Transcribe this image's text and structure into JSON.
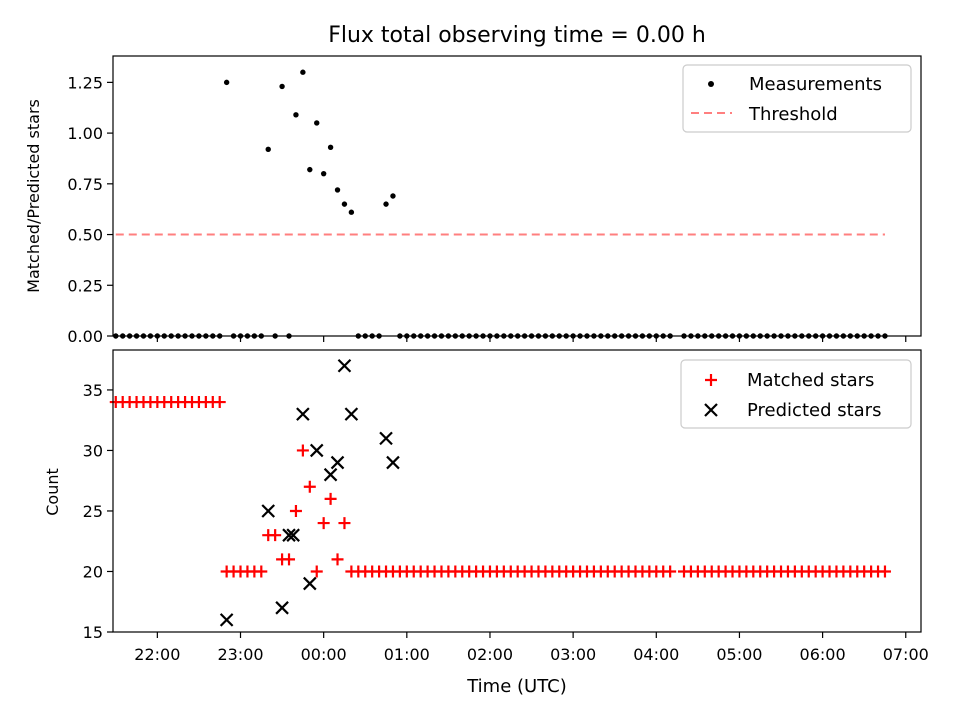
{
  "title": "Flux total observing time = 0.00 h",
  "colors": {
    "measure": "#000000",
    "threshold": "#ff7f7f",
    "matched": "#ff0000",
    "predicted": "#000000"
  },
  "chart_data": [
    {
      "type": "scatter",
      "title": "Flux total observing time = 0.00 h",
      "ylabel": "Matched/Predicted stars",
      "xlabel": "",
      "xlim": [
        "21:28",
        "07:11"
      ],
      "ylim": [
        0,
        1.38
      ],
      "yticks": [
        "0.00",
        "0.25",
        "0.50",
        "0.75",
        "1.00",
        "1.25"
      ],
      "xticks": [
        "22:00",
        "23:00",
        "00:00",
        "01:00",
        "02:00",
        "03:00",
        "04:00",
        "05:00",
        "06:00",
        "07:00"
      ],
      "legend": {
        "placement": "top-right",
        "entries": [
          "Measurements",
          "Threshold"
        ]
      },
      "threshold": {
        "name": "Threshold",
        "y": 0.5,
        "x": [
          "21:30",
          "06:45"
        ]
      },
      "series": [
        {
          "name": "Measurements",
          "x": [
            "21:30",
            "21:35",
            "21:40",
            "21:45",
            "21:50",
            "21:55",
            "22:00",
            "22:05",
            "22:10",
            "22:15",
            "22:20",
            "22:25",
            "22:30",
            "22:35",
            "22:40",
            "22:45",
            "22:50",
            "22:55",
            "23:00",
            "23:05",
            "23:10",
            "23:15",
            "23:20",
            "23:25",
            "23:30",
            "23:35",
            "23:40",
            "23:45",
            "23:50",
            "23:55",
            "00:00",
            "00:05",
            "00:10",
            "00:15",
            "00:20",
            "00:25",
            "00:30",
            "00:35",
            "00:40",
            "00:45",
            "00:50",
            "00:55",
            "01:00",
            "01:05",
            "01:10",
            "01:15",
            "01:20",
            "01:25",
            "01:30",
            "01:35",
            "01:40",
            "01:45",
            "01:50",
            "01:55",
            "02:00",
            "02:05",
            "02:10",
            "02:15",
            "02:20",
            "02:25",
            "02:30",
            "02:35",
            "02:40",
            "02:45",
            "02:50",
            "02:55",
            "03:00",
            "03:05",
            "03:10",
            "03:15",
            "03:20",
            "03:25",
            "03:30",
            "03:35",
            "03:40",
            "03:45",
            "03:50",
            "03:55",
            "04:00",
            "04:05",
            "04:10",
            "04:20",
            "04:25",
            "04:30",
            "04:35",
            "04:40",
            "04:45",
            "04:50",
            "04:55",
            "05:00",
            "05:05",
            "05:10",
            "05:15",
            "05:20",
            "05:25",
            "05:30",
            "05:35",
            "05:40",
            "05:45",
            "05:50",
            "05:55",
            "06:00",
            "06:05",
            "06:10",
            "06:15",
            "06:20",
            "06:25",
            "06:30",
            "06:35",
            "06:40",
            "06:45"
          ],
          "y": [
            0,
            0,
            0,
            0,
            0,
            0,
            0,
            0,
            0,
            0,
            0,
            0,
            0,
            0,
            0,
            0,
            1.25,
            0,
            0,
            0,
            0,
            0,
            0.92,
            0,
            1.23,
            0,
            1.09,
            1.3,
            0.82,
            1.05,
            0.8,
            0.93,
            0.72,
            0.65,
            0.61,
            0,
            0,
            0,
            0,
            0.65,
            0.69,
            0,
            0,
            0,
            0,
            0,
            0,
            0,
            0,
            0,
            0,
            0,
            0,
            0,
            0,
            0,
            0,
            0,
            0,
            0,
            0,
            0,
            0,
            0,
            0,
            0,
            0,
            0,
            0,
            0,
            0,
            0,
            0,
            0,
            0,
            0,
            0,
            0,
            0,
            0,
            0,
            0,
            0,
            0,
            0,
            0,
            0,
            0,
            0,
            0,
            0,
            0,
            0,
            0,
            0,
            0,
            0,
            0,
            0,
            0,
            0,
            0,
            0,
            0,
            0,
            0,
            0,
            0,
            0,
            0,
            0
          ]
        }
      ]
    },
    {
      "type": "scatter",
      "ylabel": "Count",
      "xlabel": "Time (UTC)",
      "xlim": [
        "21:28",
        "07:11"
      ],
      "ylim": [
        15,
        38.3
      ],
      "yticks": [
        "15",
        "20",
        "25",
        "30",
        "35"
      ],
      "xticks": [
        "22:00",
        "23:00",
        "00:00",
        "01:00",
        "02:00",
        "03:00",
        "04:00",
        "05:00",
        "06:00",
        "07:00"
      ],
      "legend": {
        "placement": "top-right",
        "entries": [
          "Matched stars",
          "Predicted stars"
        ]
      },
      "series": [
        {
          "name": "Matched stars",
          "x": [
            "21:30",
            "21:35",
            "21:40",
            "21:45",
            "21:50",
            "21:55",
            "22:00",
            "22:05",
            "22:10",
            "22:15",
            "22:20",
            "22:25",
            "22:30",
            "22:35",
            "22:40",
            "22:45",
            "22:50",
            "22:55",
            "23:00",
            "23:05",
            "23:10",
            "23:15",
            "23:20",
            "23:25",
            "23:30",
            "23:35",
            "23:40",
            "23:45",
            "23:50",
            "23:55",
            "00:00",
            "00:05",
            "00:10",
            "00:15",
            "00:20",
            "00:25",
            "00:30",
            "00:35",
            "00:40",
            "00:45",
            "00:50",
            "00:55",
            "01:00",
            "01:05",
            "01:10",
            "01:15",
            "01:20",
            "01:25",
            "01:30",
            "01:35",
            "01:40",
            "01:45",
            "01:50",
            "01:55",
            "02:00",
            "02:05",
            "02:10",
            "02:15",
            "02:20",
            "02:25",
            "02:30",
            "02:35",
            "02:40",
            "02:45",
            "02:50",
            "02:55",
            "03:00",
            "03:05",
            "03:10",
            "03:15",
            "03:20",
            "03:25",
            "03:30",
            "03:35",
            "03:40",
            "03:45",
            "03:50",
            "03:55",
            "04:00",
            "04:05",
            "04:10",
            "04:20",
            "04:25",
            "04:30",
            "04:35",
            "04:40",
            "04:45",
            "04:50",
            "04:55",
            "05:00",
            "05:05",
            "05:10",
            "05:15",
            "05:20",
            "05:25",
            "05:30",
            "05:35",
            "05:40",
            "05:45",
            "05:50",
            "05:55",
            "06:00",
            "06:05",
            "06:10",
            "06:15",
            "06:20",
            "06:25",
            "06:30",
            "06:35",
            "06:40",
            "06:45"
          ],
          "y": [
            34,
            34,
            34,
            34,
            34,
            34,
            34,
            34,
            34,
            34,
            34,
            34,
            34,
            34,
            34,
            34,
            20,
            20,
            20,
            20,
            20,
            20,
            23,
            23,
            21,
            21,
            25,
            30,
            27,
            20,
            24,
            26,
            21,
            24,
            20,
            20,
            20,
            20,
            20,
            20,
            20,
            20,
            20,
            20,
            20,
            20,
            20,
            20,
            20,
            20,
            20,
            20,
            20,
            20,
            20,
            20,
            20,
            20,
            20,
            20,
            20,
            20,
            20,
            20,
            20,
            20,
            20,
            20,
            20,
            20,
            20,
            20,
            20,
            20,
            20,
            20,
            20,
            20,
            20,
            20,
            20,
            20,
            20,
            20,
            20,
            20,
            20,
            20,
            20,
            20,
            20,
            20,
            20,
            20,
            20,
            20,
            20,
            20,
            20,
            20,
            20,
            20,
            20,
            20,
            20,
            20,
            20,
            20,
            20,
            20,
            20
          ]
        },
        {
          "name": "Predicted stars",
          "x": [
            "22:50",
            "23:20",
            "23:30",
            "23:35",
            "23:38",
            "23:45",
            "23:50",
            "23:55",
            "00:05",
            "00:10",
            "00:15",
            "00:20",
            "00:45",
            "00:50"
          ],
          "y": [
            16,
            25,
            17,
            23,
            23,
            33,
            19,
            30,
            28,
            29,
            37,
            33,
            31,
            29
          ]
        }
      ]
    }
  ]
}
